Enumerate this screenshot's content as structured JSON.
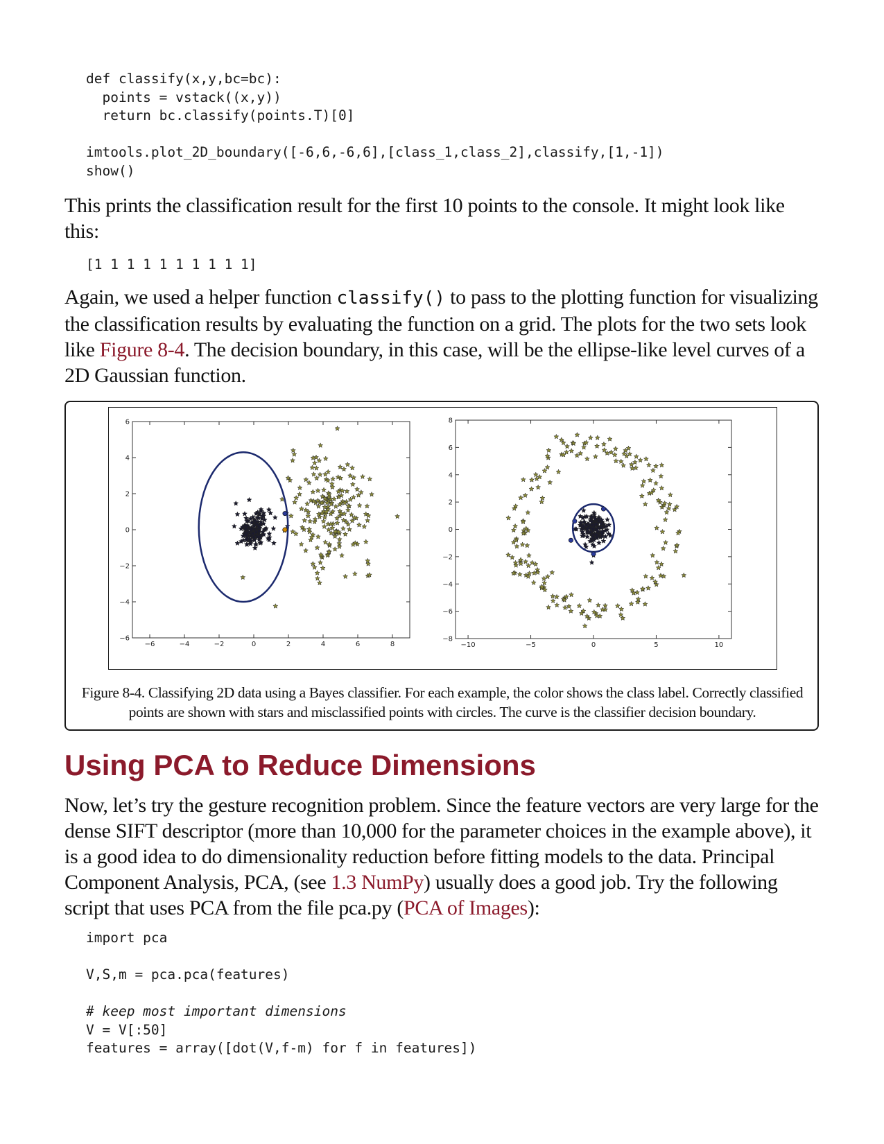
{
  "code_block_1": {
    "lines": [
      "def classify(x,y,bc=bc):",
      "  points = vstack((x,y))",
      "  return bc.classify(points.T)[0]",
      "",
      "imtools.plot_2D_boundary([-6,6,-6,6],[class_1,class_2],classify,[1,-1])",
      "show()"
    ]
  },
  "paragraph_1": {
    "text": "This prints the classification result for the first 10 points to the console. It might look like this:"
  },
  "code_block_2": {
    "lines": [
      "[1 1 1 1 1 1 1 1 1 1]"
    ]
  },
  "paragraph_2": {
    "part1": "Again, we used a helper function ",
    "code": "classify()",
    "part2": " to pass to the plotting function for visualizing the classification results by evaluating the function on a grid. The plots for the two sets look like ",
    "link": "Figure 8-4",
    "part3": ". The decision boundary, in this case, will be the ellipse-like level curves of a 2D Gaussian function."
  },
  "figure": {
    "caption": "Figure 8-4. Classifying 2D data using a Bayes classifier. For each example, the color shows the class label. Correctly classified points are shown with stars and misclassified points with circles. The curve is the classifier decision boundary."
  },
  "chart_data": [
    {
      "type": "scatter",
      "xlim": [
        -7,
        9
      ],
      "ylim": [
        -6,
        6
      ],
      "xticks": [
        "−6",
        "−4",
        "−2",
        "0",
        "2",
        "4",
        "6",
        "8"
      ],
      "yticks": [
        "6",
        "4",
        "2",
        "0",
        "−2",
        "−4",
        "−6"
      ],
      "xtick_values": [
        -6,
        -4,
        -2,
        0,
        2,
        4,
        6,
        8
      ],
      "ytick_values": [
        6,
        4,
        2,
        0,
        -2,
        -4,
        -6
      ],
      "grid": false,
      "series": [
        {
          "marker": "star",
          "color": "#1a1a2e",
          "center": [
            0,
            0
          ],
          "spread": [
            0.5,
            0.5
          ],
          "count": 160
        },
        {
          "marker": "star",
          "color": "#8a8a3a",
          "center": [
            4.5,
            1
          ],
          "spread": [
            1.2,
            1.5
          ],
          "count": 200
        }
      ],
      "misclassified": [
        {
          "x": 1.8,
          "y": 0.9,
          "color": "#2a3a9a"
        },
        {
          "x": 1.8,
          "y": 0.0,
          "color": "#d08a00"
        }
      ],
      "boundary": {
        "shape": "ellipse",
        "cx": -0.6,
        "cy": 0.15,
        "rx": 2.57,
        "ry": 4.15
      }
    },
    {
      "type": "scatter",
      "xlim": [
        -11,
        11
      ],
      "ylim": [
        -8,
        8
      ],
      "xticks": [
        "−10",
        "−5",
        "0",
        "5",
        "10"
      ],
      "yticks": [
        "8",
        "6",
        "4",
        "2",
        "0",
        "−2",
        "−4",
        "−6",
        "−8"
      ],
      "xtick_values": [
        -10,
        -5,
        0,
        5,
        10
      ],
      "ytick_values": [
        8,
        6,
        4,
        2,
        0,
        -2,
        -4,
        -6,
        -8
      ],
      "grid": false,
      "series": [
        {
          "marker": "star",
          "color": "#1a1a2e",
          "center": [
            0,
            0
          ],
          "spread": [
            0.6,
            0.6
          ],
          "count": 150
        },
        {
          "marker": "star",
          "color": "#8a8a3a",
          "ring_radius": 6,
          "ring_noise": 0.6,
          "count": 200
        }
      ],
      "misclassified": [
        {
          "x": -1.5,
          "y": 0.6,
          "color": "#2a3a9a"
        },
        {
          "x": 0.8,
          "y": 1.5,
          "color": "#2a3a9a"
        },
        {
          "x": -1.8,
          "y": -0.8,
          "color": "#2a3a9a"
        },
        {
          "x": 0.0,
          "y": -1.8,
          "color": "#2a3a9a"
        }
      ],
      "boundary": {
        "shape": "ellipse",
        "cx": 0.0,
        "cy": 0.1,
        "rx": 1.65,
        "ry": 1.75
      }
    }
  ],
  "heading": {
    "text": "Using PCA to Reduce Dimensions"
  },
  "paragraph_3": {
    "part1": "Now, let’s try the gesture recognition problem. Since the feature vectors are very large for the dense SIFT descriptor (more than 10,000 for the parameter choices in the example above), it is a good idea to do dimensionality reduction before fitting models to the data. Principal Component Analysis, PCA, (see ",
    "link1": "1.3 NumPy",
    "part2": ") usually does a good job. Try the following script that uses PCA from the file pca.py (",
    "link2": "PCA of Images",
    "part3": "):"
  },
  "code_block_3": {
    "lines": [
      "import pca",
      "",
      "V,S,m = pca.pca(features)",
      "",
      "# keep most important dimensions",
      "V = V[:50]",
      "features = array([dot(V,f-m) for f in features])"
    ]
  }
}
